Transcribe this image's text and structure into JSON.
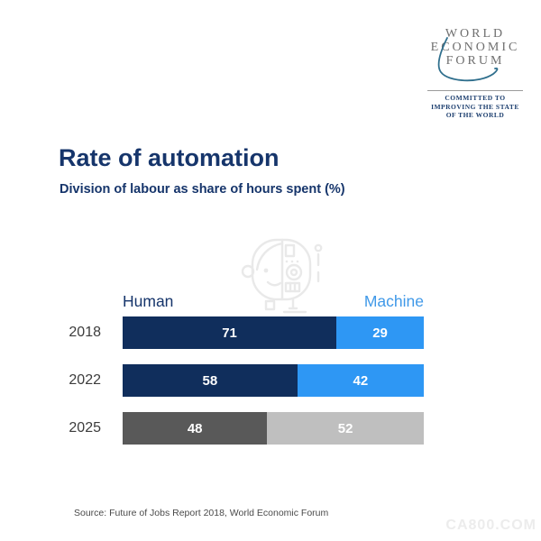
{
  "logo": {
    "line1": "WORLD",
    "line2": "ECONOMIC",
    "line3": "FORUM",
    "tagline1": "COMMITTED TO",
    "tagline2": "IMPROVING THE STATE",
    "tagline3": "OF THE WORLD",
    "text_color": "#6f6f6f",
    "tagline_color": "#1d3f6f",
    "swoosh_color": "#2f6f8d"
  },
  "title": "Rate of automation",
  "subtitle": "Division of labour as share of hours spent (%)",
  "chart_data": {
    "type": "bar",
    "orientation": "horizontal",
    "stacked": true,
    "categories": [
      "2018",
      "2022",
      "2025"
    ],
    "series": [
      {
        "name": "Human",
        "values": [
          71,
          58,
          48
        ],
        "colors": [
          "#102e5c",
          "#102e5c",
          "#595959"
        ],
        "label_color": "#16356b"
      },
      {
        "name": "Machine",
        "values": [
          29,
          42,
          52
        ],
        "colors": [
          "#2e97f4",
          "#2e97f4",
          "#bfbfbf"
        ],
        "label_color": "#4099e8"
      }
    ],
    "xlim": [
      0,
      100
    ],
    "title": "Rate of automation",
    "subtitle": "Division of labour as share of hours spent (%)",
    "legend_position": "top",
    "grid": false,
    "value_labels": "inside, white, bold"
  },
  "source": "Source: Future of Jobs Report 2018, World Economic Forum",
  "watermark": "CA800.COM"
}
